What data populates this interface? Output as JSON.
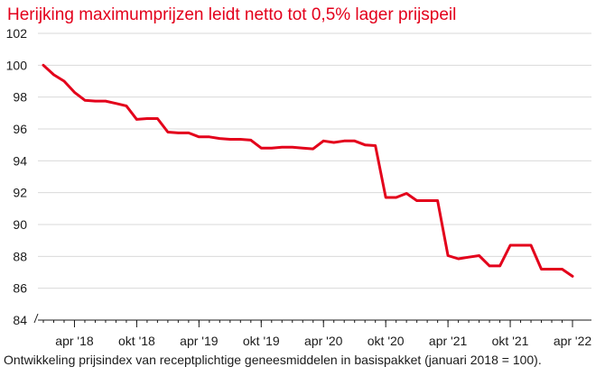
{
  "page": {
    "title": "Herijking maximumprijzen leidt netto tot 0,5% lager prijspeil",
    "caption": "Ontwikkeling prijsindex van receptplichtige geneesmiddelen in basispakket (januari 2018 = 100)."
  },
  "colors": {
    "line": "#e3001b",
    "title": "#e3001b",
    "grid": "#d9d9d9",
    "axis": "#1a1a1a"
  },
  "chart_data": {
    "type": "line",
    "title": "Herijking maximumprijzen leidt netto tot 0,5% lager prijspeil",
    "xlabel": "",
    "ylabel": "",
    "ylim": [
      84,
      102
    ],
    "yticks": [
      84,
      86,
      88,
      90,
      92,
      94,
      96,
      98,
      100,
      102
    ],
    "xticks": [
      {
        "label": "apr '18",
        "x": "2018-04"
      },
      {
        "label": "okt '18",
        "x": "2018-10"
      },
      {
        "label": "apr '19",
        "x": "2019-04"
      },
      {
        "label": "okt '19",
        "x": "2019-10"
      },
      {
        "label": "apr '20",
        "x": "2020-04"
      },
      {
        "label": "okt '20",
        "x": "2020-10"
      },
      {
        "label": "apr '21",
        "x": "2021-04"
      },
      {
        "label": "okt '21",
        "x": "2021-10"
      },
      {
        "label": "apr '22",
        "x": "2022-04"
      }
    ],
    "grid": true,
    "legend": "none",
    "series": [
      {
        "x": [
          "2018-01",
          "2018-02",
          "2018-03",
          "2018-04",
          "2018-05",
          "2018-06",
          "2018-07",
          "2018-08",
          "2018-09",
          "2018-10",
          "2018-11",
          "2018-12",
          "2019-01",
          "2019-02",
          "2019-03",
          "2019-04",
          "2019-05",
          "2019-06",
          "2019-07",
          "2019-08",
          "2019-09",
          "2019-10",
          "2019-11",
          "2019-12",
          "2020-01",
          "2020-02",
          "2020-03",
          "2020-04",
          "2020-05",
          "2020-06",
          "2020-07",
          "2020-08",
          "2020-09",
          "2020-10",
          "2020-11",
          "2020-12",
          "2021-01",
          "2021-02",
          "2021-03",
          "2021-04",
          "2021-05",
          "2021-06",
          "2021-07",
          "2021-08",
          "2021-09",
          "2021-10",
          "2021-11",
          "2021-12",
          "2022-01",
          "2022-02",
          "2022-03",
          "2022-04"
        ],
        "values": [
          100.0,
          99.4,
          99.0,
          98.3,
          97.8,
          97.75,
          97.75,
          97.6,
          97.45,
          96.6,
          96.65,
          96.65,
          95.8,
          95.75,
          95.75,
          95.5,
          95.5,
          95.4,
          95.35,
          95.35,
          95.3,
          94.8,
          94.8,
          94.85,
          94.85,
          94.8,
          94.75,
          95.25,
          95.15,
          95.25,
          95.25,
          95.0,
          94.95,
          91.7,
          91.7,
          91.95,
          91.5,
          91.5,
          91.5,
          88.05,
          87.85,
          87.95,
          88.05,
          87.4,
          87.4,
          88.7,
          88.7,
          88.7,
          87.2,
          87.2,
          87.2,
          86.75
        ]
      }
    ]
  }
}
